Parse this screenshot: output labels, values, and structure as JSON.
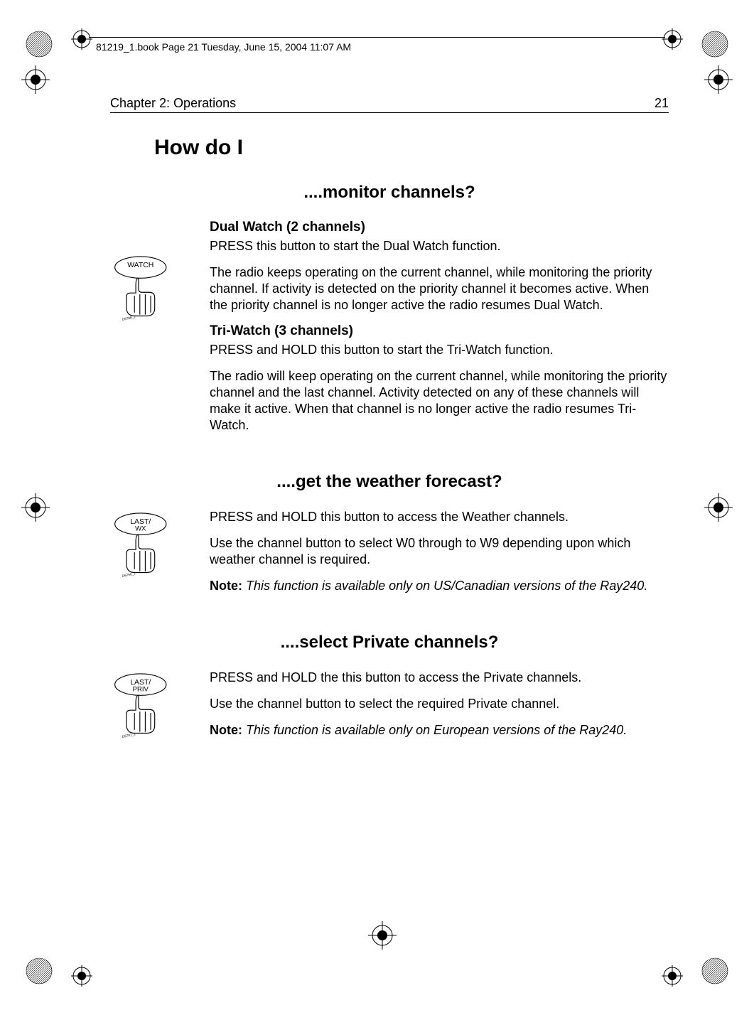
{
  "header": {
    "crop_text": "81219_1.book  Page 21  Tuesday, June 15, 2004  11:07 AM"
  },
  "running": {
    "chapter": "Chapter 2: Operations",
    "page": "21"
  },
  "h1": "How do I",
  "sections": [
    {
      "title": "....monitor channels?",
      "icon_label": "WATCH",
      "icon_sublabel": "",
      "icon_caption": "D6788_1",
      "blocks": [
        {
          "h3": "Dual Watch (2 channels)",
          "p": "PRESS this button to start the Dual Watch function."
        },
        {
          "p": "The radio keeps operating on the current channel, while monitoring the priority channel. If activity is detected on the priority channel it becomes active. When the priority channel is no longer active the radio resumes Dual Watch."
        },
        {
          "h3": "Tri-Watch (3 channels)",
          "p": "PRESS and HOLD this button to start the Tri-Watch function."
        },
        {
          "p": "The radio will keep operating on the current channel, while monitoring the priority channel and the last channel. Activity detected on any of these channels will make it active. When that channel is no longer active the radio resumes Tri-Watch."
        }
      ]
    },
    {
      "title": "....get the weather forecast?",
      "icon_label": "LAST/",
      "icon_sublabel": "WX",
      "icon_caption": "D6790_1",
      "blocks": [
        {
          "p": "PRESS and HOLD this button to access the Weather channels."
        },
        {
          "p": "Use the channel button to select W0 through to W9 depending upon which weather channel is required."
        },
        {
          "note": "This function is available only on US/Canadian versions of the Ray240."
        }
      ]
    },
    {
      "title": "....select Private channels?",
      "icon_label": "LAST/",
      "icon_sublabel": "PRIV",
      "icon_caption": "D6791_1",
      "blocks": [
        {
          "p": "PRESS and HOLD the this button to access the Private channels."
        },
        {
          "p": "Use the channel button to select the required Private channel."
        },
        {
          "note": "This function is available only on European versions of the Ray240."
        }
      ]
    }
  ],
  "note_label": "Note:  ",
  "colors": {
    "text": "#000000",
    "bg": "#ffffff"
  }
}
